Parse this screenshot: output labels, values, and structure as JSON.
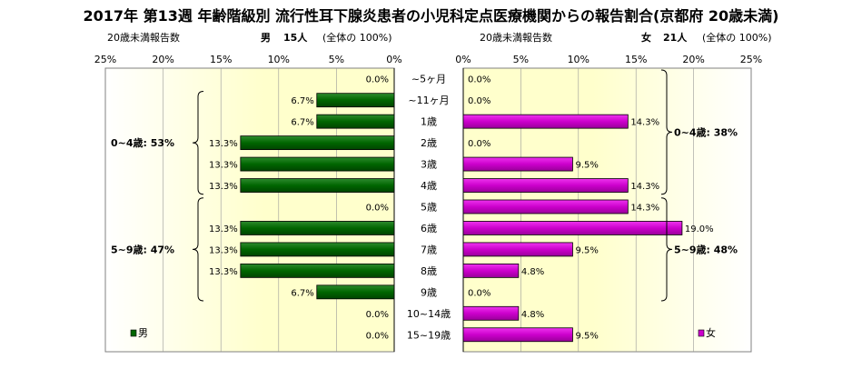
{
  "title": "2017年 第13週 年齢階級別 流行性耳下腺炎患者の小児科定点医療機関からの報告割合(京都府 20歳未満)",
  "left_panel": {
    "report_label": "20歳未満報告数",
    "sex": "男",
    "count": "15人",
    "total": "(全体の 100%)"
  },
  "right_panel": {
    "report_label": "20歳未満報告数",
    "sex": "女",
    "count": "21人",
    "total": "(全体の 100%)"
  },
  "chart_data": {
    "type": "bar",
    "orientation": "horizontal-mirrored",
    "categories": [
      "~5ヶ月",
      "~11ヶ月",
      "1歳",
      "2歳",
      "3歳",
      "4歳",
      "5歳",
      "6歳",
      "7歳",
      "8歳",
      "9歳",
      "10~14歳",
      "15~19歳"
    ],
    "xlim": [
      0,
      25
    ],
    "ticks": [
      0,
      5,
      10,
      15,
      20,
      25
    ],
    "tick_labels": [
      "0%",
      "5%",
      "10%",
      "15%",
      "20%",
      "25%"
    ],
    "series": [
      {
        "name": "男",
        "side": "left",
        "color": "#006600",
        "values": [
          0.0,
          6.7,
          6.7,
          13.3,
          13.3,
          13.3,
          0.0,
          13.3,
          13.3,
          13.3,
          6.7,
          0.0,
          0.0
        ],
        "labels": [
          "0.0%",
          "6.7%",
          "6.7%",
          "13.3%",
          "13.3%",
          "13.3%",
          "0.0%",
          "13.3%",
          "13.3%",
          "13.3%",
          "6.7%",
          "0.0%",
          "0.0%"
        ]
      },
      {
        "name": "女",
        "side": "right",
        "color": "#cc00cc",
        "values": [
          0.0,
          0.0,
          14.3,
          0.0,
          9.5,
          14.3,
          14.3,
          19.0,
          9.5,
          4.8,
          0.0,
          4.8,
          9.5
        ],
        "labels": [
          "0.0%",
          "0.0%",
          "14.3%",
          "0.0%",
          "9.5%",
          "14.3%",
          "14.3%",
          "19.0%",
          "9.5%",
          "4.8%",
          "0.0%",
          "4.8%",
          "9.5%"
        ]
      }
    ],
    "groups": {
      "left": [
        {
          "label": "0~4歳: 53%",
          "from": 1,
          "to": 5
        },
        {
          "label": "5~9歳: 47%",
          "from": 6,
          "to": 10
        }
      ],
      "right": [
        {
          "label": "0~4歳: 38%",
          "from": 0,
          "to": 5
        },
        {
          "label": "5~9歳: 48%",
          "from": 6,
          "to": 10
        }
      ]
    },
    "legend": {
      "left": "男",
      "right": "女"
    },
    "colors": {
      "plot_bg_center": "#ffffcc",
      "plot_bg_edge": "#ffffff",
      "gridline": "#999999",
      "axis": "#000000"
    }
  }
}
